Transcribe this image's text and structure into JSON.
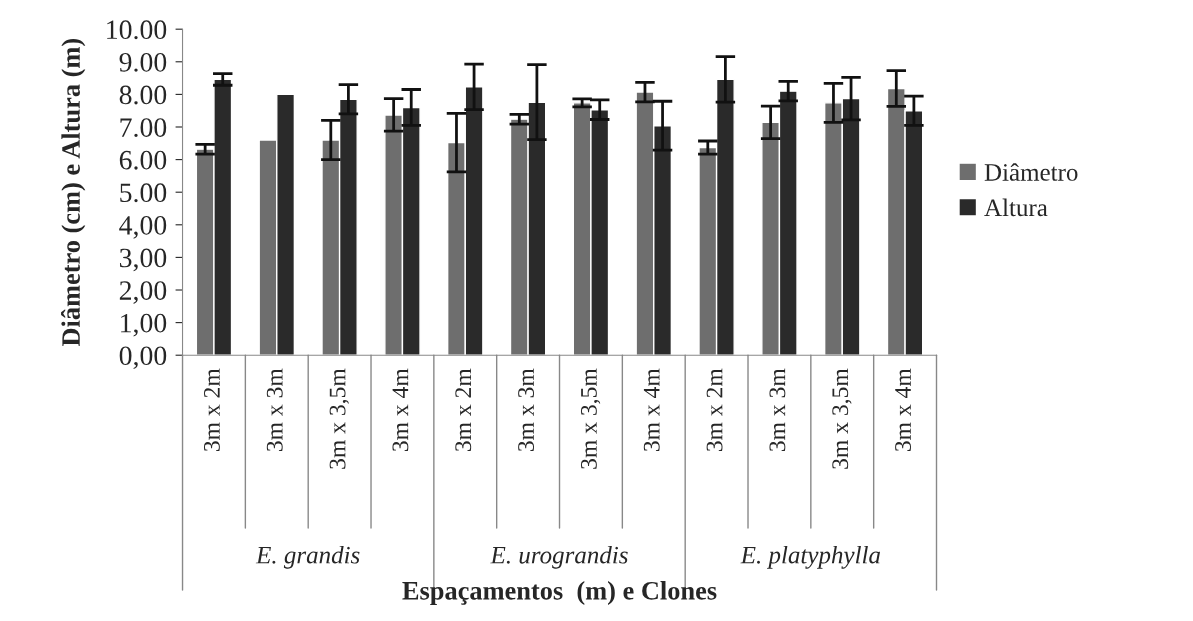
{
  "chart_data": {
    "type": "bar",
    "xlabel": "Espaçamentos  (m) e Clones",
    "ylabel": "Diâmetro (cm) e Altura (m)",
    "categories": [
      "3m x 2m",
      "3m x 3m",
      "3m x 3,5m",
      "3m x 4m",
      "3m x 2m",
      "3m x 3m",
      "3m x 3,5m",
      "3m x 4m",
      "3m x 2m",
      "3m x 3m",
      "3m x 3,5m",
      "3m x 4m"
    ],
    "series": [
      {
        "name": "Diâmetro",
        "color": "#6e6e6e",
        "values": [
          6.32,
          6.6,
          6.6,
          7.37,
          6.52,
          7.24,
          7.74,
          8.07,
          6.37,
          7.14,
          7.74,
          8.18
        ],
        "errors": [
          0.15,
          null,
          0.6,
          0.5,
          0.9,
          0.15,
          0.12,
          0.3,
          0.2,
          0.5,
          0.6,
          0.55
        ]
      },
      {
        "name": "Altura",
        "color": "#2a2a2a",
        "values": [
          8.46,
          8.0,
          7.85,
          7.6,
          8.23,
          7.76,
          7.53,
          7.04,
          8.46,
          8.1,
          7.87,
          7.5
        ],
        "errors": [
          0.18,
          null,
          0.45,
          0.55,
          0.7,
          1.15,
          0.3,
          0.75,
          0.7,
          0.3,
          0.65,
          0.45
        ]
      }
    ],
    "annotations": [
      "E. grandis",
      "E. urograndis",
      "E. platyphylla"
    ],
    "ylim": [
      0,
      10
    ],
    "yticks": [
      {
        "value": 0,
        "label": "0,00"
      },
      {
        "value": 1,
        "label": "1,00"
      },
      {
        "value": 2,
        "label": "2,00"
      },
      {
        "value": 3,
        "label": "3,00"
      },
      {
        "value": 4,
        "label": "4,00"
      },
      {
        "value": 5,
        "label": "5.00"
      },
      {
        "value": 6,
        "label": "6.00"
      },
      {
        "value": 7,
        "label": "7.00"
      },
      {
        "value": 8,
        "label": "8.00"
      },
      {
        "value": 9,
        "label": "9.00"
      },
      {
        "value": 10,
        "label": "10.00"
      }
    ],
    "grid": false,
    "legend": "right"
  }
}
